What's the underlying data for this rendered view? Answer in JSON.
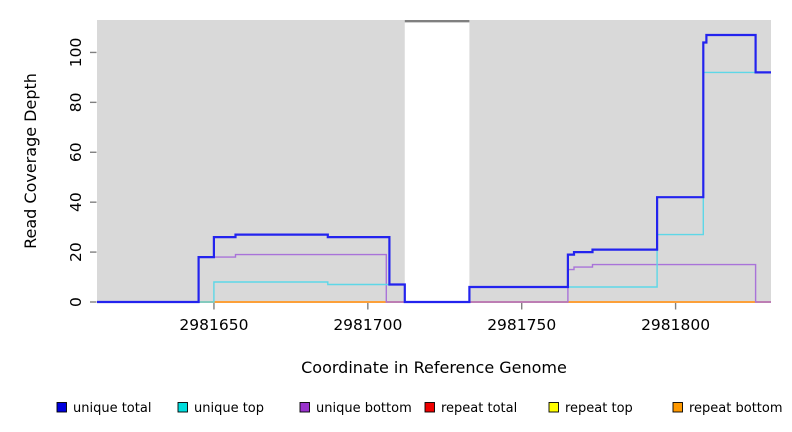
{
  "figure": {
    "xlabel": "Coordinate in Reference Genome",
    "ylabel": "Read Coverage Depth"
  },
  "chart_data": {
    "type": "line",
    "subtype": "step-after",
    "title": "",
    "xlabel": "Coordinate in Reference Genome",
    "ylabel": "Read Coverage Depth",
    "xlim": [
      2981612,
      2981831
    ],
    "ylim": [
      0,
      113
    ],
    "x_ticks": [
      2981650,
      2981700,
      2981750,
      2981800
    ],
    "y_ticks": [
      0,
      20,
      40,
      60,
      80,
      100
    ],
    "grid": false,
    "legend_position": "bottom",
    "plot_bg_color": "#d9d9d9",
    "tick_color": "#808080",
    "gap_region": {
      "x_start": 2981712,
      "x_end": 2981733,
      "fill": "#ffffff",
      "cap_color": "#808080"
    },
    "series": [
      {
        "name": "unique total",
        "legend_color": "#0000dd",
        "line_color": "#2323ee",
        "line_width": 2.2,
        "points": [
          [
            2981612,
            0
          ],
          [
            2981645,
            18
          ],
          [
            2981650,
            26
          ],
          [
            2981657,
            27
          ],
          [
            2981687,
            26
          ],
          [
            2981707,
            7
          ],
          [
            2981712,
            0
          ],
          [
            2981733,
            6
          ],
          [
            2981765,
            19
          ],
          [
            2981767,
            20
          ],
          [
            2981773,
            21
          ],
          [
            2981794,
            42
          ],
          [
            2981809,
            104
          ],
          [
            2981810,
            107
          ],
          [
            2981826,
            92
          ]
        ]
      },
      {
        "name": "unique top",
        "legend_color": "#00dddd",
        "line_color": "#5dd7e7",
        "line_width": 1.4,
        "points": [
          [
            2981612,
            0
          ],
          [
            2981650,
            8
          ],
          [
            2981687,
            7
          ],
          [
            2981712,
            0
          ],
          [
            2981733,
            6
          ],
          [
            2981794,
            27
          ],
          [
            2981809,
            92
          ]
        ]
      },
      {
        "name": "unique bottom",
        "legend_color": "#9932cc",
        "line_color": "#a973d9",
        "line_width": 1.4,
        "points": [
          [
            2981612,
            0
          ],
          [
            2981645,
            18
          ],
          [
            2981657,
            19
          ],
          [
            2981706,
            0
          ],
          [
            2981765,
            13
          ],
          [
            2981767,
            14
          ],
          [
            2981773,
            15
          ],
          [
            2981826,
            0
          ]
        ]
      },
      {
        "name": "repeat total",
        "legend_color": "#ee0000",
        "line_color": "#dd2222",
        "line_width": 1.2,
        "points": [
          [
            2981612,
            0
          ]
        ]
      },
      {
        "name": "repeat top",
        "legend_color": "#ffff00",
        "line_color": "#f5e642",
        "line_width": 1.2,
        "points": [
          [
            2981612,
            0
          ]
        ]
      },
      {
        "name": "repeat bottom",
        "legend_color": "#ff9900",
        "line_color": "#ff9d2d",
        "line_width": 1.8,
        "points": [
          [
            2981612,
            0
          ]
        ]
      }
    ],
    "draw_order": [
      3,
      4,
      5,
      2,
      1,
      0
    ]
  }
}
